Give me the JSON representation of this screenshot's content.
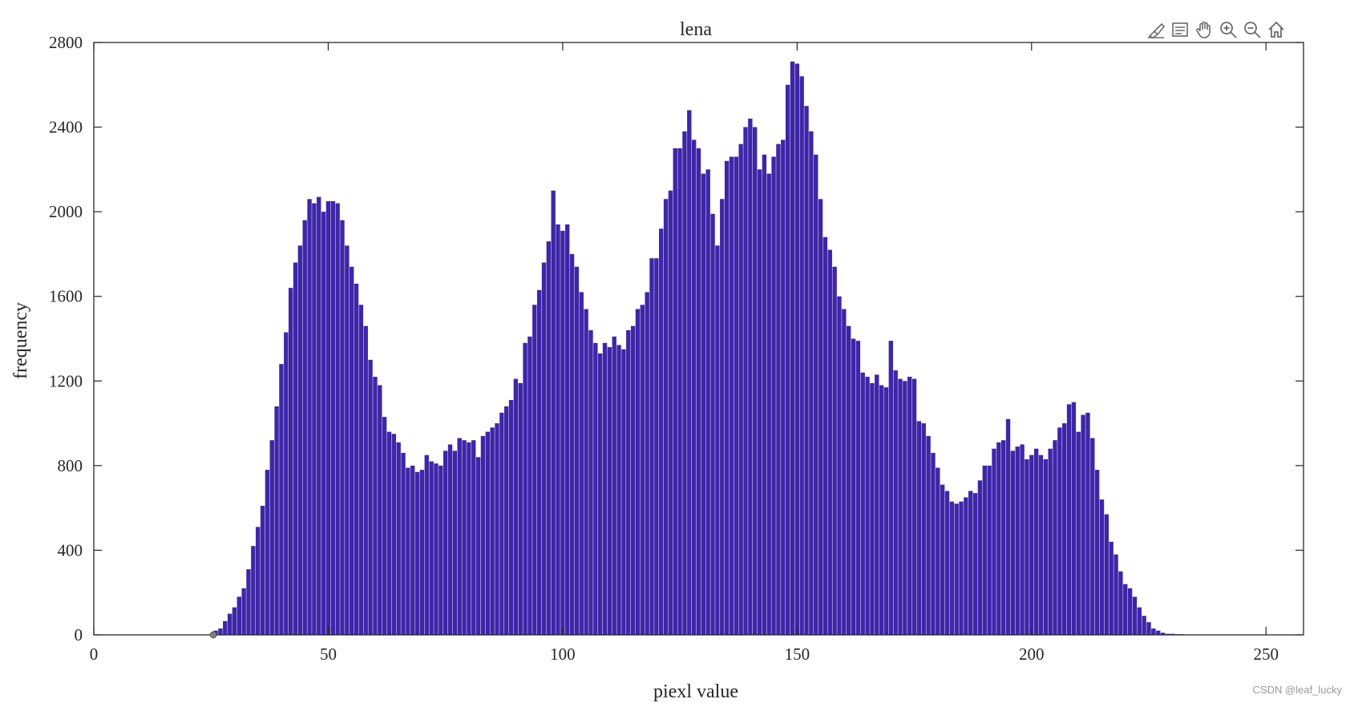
{
  "toolbar": {
    "items": [
      "brush-icon",
      "data-tips-icon",
      "pan-icon",
      "zoom-in-icon",
      "zoom-out-icon",
      "home-icon"
    ]
  },
  "watermark": "CSDN @leaf_lucky",
  "colors": {
    "bar": "#3d26a8",
    "axis": "#262626",
    "marker": "#7f7f7f"
  },
  "chart_data": {
    "type": "bar",
    "title": "lena",
    "xlabel": "piexl value",
    "ylabel": "frequency",
    "xlim": [
      0,
      258
    ],
    "ylim": [
      0,
      2800
    ],
    "xticks": [
      0,
      50,
      100,
      150,
      200,
      250
    ],
    "yticks": [
      0,
      400,
      800,
      1200,
      1600,
      2000,
      2400,
      2800
    ],
    "box": true,
    "grid": false,
    "marker": {
      "x": 25.5,
      "y": 0
    },
    "x_start": 25,
    "values": [
      0,
      20,
      30,
      65,
      100,
      130,
      180,
      220,
      310,
      420,
      510,
      610,
      780,
      920,
      1080,
      1280,
      1430,
      1640,
      1760,
      1840,
      1960,
      2060,
      2040,
      2070,
      2000,
      2050,
      2050,
      2040,
      1960,
      1840,
      1740,
      1660,
      1560,
      1460,
      1300,
      1220,
      1180,
      1030,
      960,
      950,
      910,
      860,
      790,
      800,
      770,
      780,
      850,
      820,
      810,
      800,
      870,
      900,
      870,
      930,
      920,
      910,
      920,
      840,
      940,
      960,
      980,
      1000,
      1050,
      1080,
      1110,
      1210,
      1190,
      1380,
      1410,
      1560,
      1630,
      1760,
      1860,
      2100,
      1940,
      1910,
      1940,
      1800,
      1740,
      1620,
      1540,
      1440,
      1380,
      1330,
      1380,
      1360,
      1410,
      1370,
      1350,
      1440,
      1460,
      1540,
      1560,
      1620,
      1780,
      1780,
      1920,
      2060,
      2100,
      2300,
      2300,
      2380,
      2480,
      2340,
      2300,
      2180,
      2200,
      1990,
      1840,
      2060,
      2240,
      2260,
      2260,
      2320,
      2400,
      2440,
      2400,
      2200,
      2270,
      2180,
      2260,
      2320,
      2340,
      2600,
      2710,
      2700,
      2640,
      2500,
      2380,
      2270,
      2060,
      1880,
      1820,
      1740,
      1600,
      1540,
      1460,
      1400,
      1390,
      1240,
      1220,
      1190,
      1230,
      1180,
      1170,
      1390,
      1250,
      1210,
      1200,
      1220,
      1210,
      1010,
      1000,
      940,
      860,
      790,
      710,
      680,
      630,
      620,
      630,
      650,
      680,
      670,
      730,
      800,
      800,
      880,
      910,
      920,
      1020,
      870,
      890,
      900,
      830,
      850,
      880,
      850,
      830,
      880,
      920,
      980,
      1000,
      1090,
      1100,
      960,
      1040,
      1050,
      930,
      780,
      640,
      570,
      440,
      380,
      300,
      240,
      220,
      180,
      130,
      90,
      60,
      30,
      20,
      10,
      5,
      5,
      3,
      3,
      2,
      2,
      1,
      1,
      1,
      0,
      0,
      0,
      0,
      0,
      0,
      0,
      0,
      0,
      0,
      0
    ]
  }
}
